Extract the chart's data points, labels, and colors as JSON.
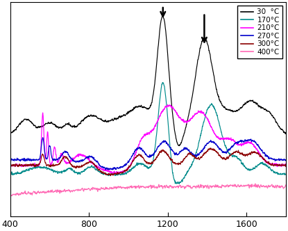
{
  "legend_labels": [
    "30  °C",
    "170°C",
    "210°C",
    "270°C",
    "300°C",
    "400°C"
  ],
  "legend_colors": [
    "#000000",
    "#008B8B",
    "#ff00ff",
    "#0000cc",
    "#8b0000",
    "#ff69b4"
  ],
  "xmin": 400,
  "xmax": 1800,
  "background_color": "#ffffff"
}
